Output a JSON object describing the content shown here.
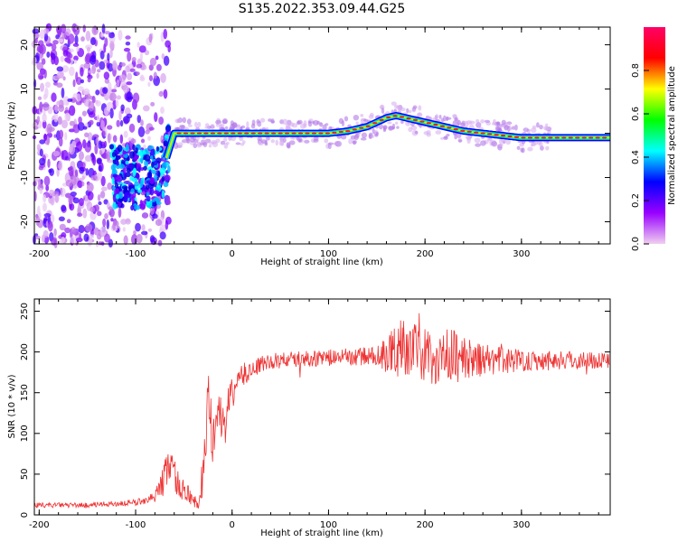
{
  "title": "S135.2022.353.09.44.G25",
  "chart_data": [
    {
      "type": "heatmap",
      "xlabel": "Height of straight line (km)",
      "ylabel": "Frequency (Hz)",
      "xlim": [
        -205,
        392
      ],
      "ylim": [
        -25,
        24
      ],
      "x_ticks": [
        -200,
        -100,
        0,
        100,
        200,
        300
      ],
      "y_ticks": [
        -20,
        -10,
        0,
        10,
        20
      ],
      "colorbar": {
        "label": "Normalized spectral amplitude",
        "range": [
          0,
          1
        ],
        "ticks": [
          0.0,
          0.2,
          0.4,
          0.6,
          0.8
        ],
        "colors": [
          "#f0d0f0",
          "#9900ff",
          "#0000ff",
          "#00ffff",
          "#00ff00",
          "#ffff00",
          "#ff0000",
          "#ff0066"
        ]
      },
      "ridge": {
        "x": [
          -70,
          -60,
          -40,
          -20,
          0,
          50,
          100,
          120,
          140,
          160,
          170,
          180,
          200,
          220,
          240,
          260,
          300,
          392
        ],
        "y": [
          -7,
          0,
          0,
          0,
          0,
          0,
          0,
          0.5,
          1.5,
          3.5,
          4,
          3.5,
          2.5,
          1.5,
          0.5,
          0,
          -1,
          -1
        ]
      }
    },
    {
      "type": "line",
      "xlabel": "Height of straight line (km)",
      "ylabel": "SNR (10 * v/v)",
      "xlim": [
        -205,
        392
      ],
      "ylim": [
        0,
        265
      ],
      "x_ticks": [
        -200,
        -100,
        0,
        100,
        200,
        300
      ],
      "y_ticks": [
        0,
        50,
        100,
        150,
        200,
        250
      ],
      "series": [
        {
          "color": "#ee3333",
          "x": [
            -205,
            -150,
            -100,
            -80,
            -70,
            -65,
            -60,
            -55,
            -45,
            -35,
            -30,
            -25,
            -20,
            -15,
            -10,
            0,
            10,
            20,
            30,
            50,
            100,
            150,
            170,
            175,
            200,
            230,
            250,
            300,
            392
          ],
          "y": [
            12,
            12,
            15,
            22,
            45,
            70,
            50,
            35,
            25,
            12,
            50,
            130,
            85,
            135,
            110,
            150,
            170,
            178,
            185,
            190,
            193,
            195,
            200,
            210,
            195,
            195,
            190,
            190,
            190
          ],
          "noise": [
            3,
            3,
            4,
            6,
            22,
            28,
            22,
            15,
            12,
            6,
            35,
            50,
            35,
            28,
            25,
            20,
            16,
            12,
            10,
            10,
            10,
            12,
            35,
            35,
            35,
            35,
            22,
            14,
            10
          ]
        }
      ]
    }
  ]
}
